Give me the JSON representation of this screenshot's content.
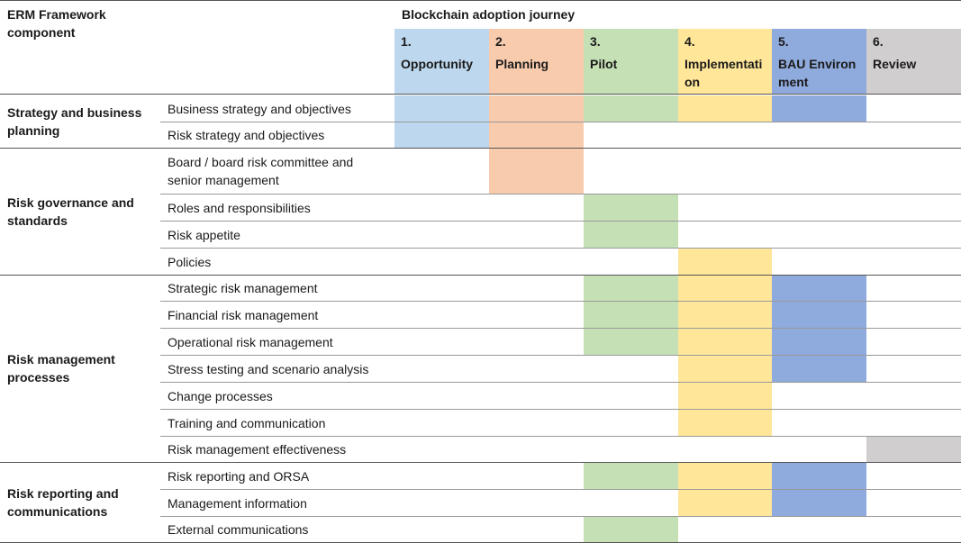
{
  "header": {
    "framework_label": "ERM Framework component",
    "journey_title": "Blockchain adoption journey"
  },
  "colors": {
    "opportunity": "#bdd7ee",
    "planning": "#f8cbad",
    "pilot": "#c5e0b4",
    "implementation": "#ffe699",
    "bau": "#8faadc",
    "review": "#d0cece"
  },
  "stages": [
    {
      "num": "1.",
      "name": "Opportunity",
      "color": "#bdd7ee"
    },
    {
      "num": "2.",
      "name": "Planning",
      "color": "#f8cbad"
    },
    {
      "num": "3.",
      "name": "Pilot",
      "color": "#c5e0b4"
    },
    {
      "num": "4.",
      "name": "Implementati on",
      "color": "#ffe699"
    },
    {
      "num": "5.",
      "name": "BAU Environment",
      "color": "#8faadc"
    },
    {
      "num": "6.",
      "name": "Review",
      "color": "#d0cece"
    }
  ],
  "components": [
    {
      "name": "Strategy and business planning"
    },
    {
      "name": "Risk governance and standards"
    },
    {
      "name": "Risk management processes"
    },
    {
      "name": "Risk reporting and communications"
    }
  ],
  "rows": [
    {
      "label": "Business strategy and objectives",
      "stages": [
        1,
        1,
        1,
        1,
        1,
        0
      ]
    },
    {
      "label": "Risk strategy and objectives",
      "stages": [
        1,
        1,
        0,
        0,
        0,
        0
      ]
    },
    {
      "label": "Board / board risk committee and senior management",
      "stages": [
        0,
        1,
        0,
        0,
        0,
        0
      ]
    },
    {
      "label": "Roles and responsibilities",
      "stages": [
        0,
        0,
        1,
        0,
        0,
        0
      ]
    },
    {
      "label": "Risk appetite",
      "stages": [
        0,
        0,
        1,
        0,
        0,
        0
      ]
    },
    {
      "label": "Policies",
      "stages": [
        0,
        0,
        0,
        1,
        0,
        0
      ]
    },
    {
      "label": "Strategic risk management",
      "stages": [
        0,
        0,
        1,
        1,
        1,
        0
      ]
    },
    {
      "label": "Financial risk management",
      "stages": [
        0,
        0,
        1,
        1,
        1,
        0
      ]
    },
    {
      "label": "Operational risk management",
      "stages": [
        0,
        0,
        1,
        1,
        1,
        0
      ]
    },
    {
      "label": "Stress testing and scenario analysis",
      "stages": [
        0,
        0,
        0,
        1,
        1,
        0
      ]
    },
    {
      "label": "Change processes",
      "stages": [
        0,
        0,
        0,
        1,
        0,
        0
      ]
    },
    {
      "label": "Training and communication",
      "stages": [
        0,
        0,
        0,
        1,
        0,
        0
      ]
    },
    {
      "label": "Risk management effectiveness",
      "stages": [
        0,
        0,
        0,
        0,
        0,
        1
      ]
    },
    {
      "label": "Risk reporting and ORSA",
      "stages": [
        0,
        0,
        1,
        1,
        1,
        0
      ]
    },
    {
      "label": "Management information",
      "stages": [
        0,
        0,
        0,
        1,
        1,
        0
      ]
    },
    {
      "label": "External communications",
      "stages": [
        0,
        0,
        1,
        0,
        0,
        0
      ]
    }
  ]
}
